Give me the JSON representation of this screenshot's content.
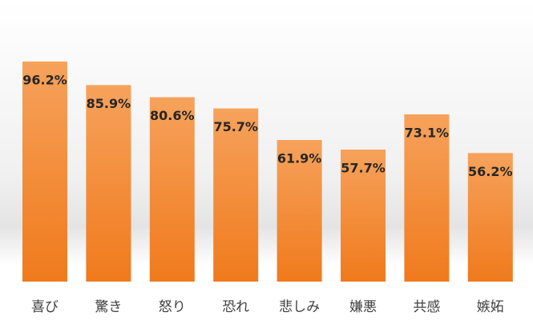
{
  "chart_data": {
    "type": "bar",
    "categories": [
      "喜び",
      "驚き",
      "怒り",
      "恐れ",
      "悲しみ",
      "嫌悪",
      "共感",
      "嫉妬"
    ],
    "values": [
      96.2,
      85.9,
      80.6,
      75.7,
      61.9,
      57.7,
      73.1,
      56.2
    ],
    "value_labels": [
      "96.2%",
      "85.9%",
      "80.6%",
      "75.7%",
      "61.9%",
      "57.7%",
      "73.1%",
      "56.2%"
    ],
    "color": "#f28a33"
  }
}
